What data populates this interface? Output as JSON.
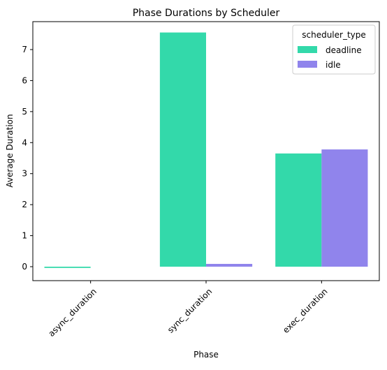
{
  "chart_data": {
    "type": "bar",
    "title": "Phase Durations by Scheduler",
    "xlabel": "Phase",
    "ylabel": "Average Duration",
    "categories": [
      "async_duration",
      "sync_duration",
      "exec_duration"
    ],
    "series": [
      {
        "name": "deadline",
        "color": "#33d9aa",
        "values": [
          -0.04,
          7.55,
          3.65
        ]
      },
      {
        "name": "idle",
        "color": "#9084ec",
        "values": [
          0.0,
          0.09,
          3.78
        ]
      }
    ],
    "yticks": [
      0,
      1,
      2,
      3,
      4,
      5,
      6,
      7
    ],
    "ylim": [
      -0.45,
      7.9
    ],
    "grid": false,
    "legend_title": "scheduler_type",
    "legend_position": "top-right",
    "xtick_rotation": 45
  }
}
